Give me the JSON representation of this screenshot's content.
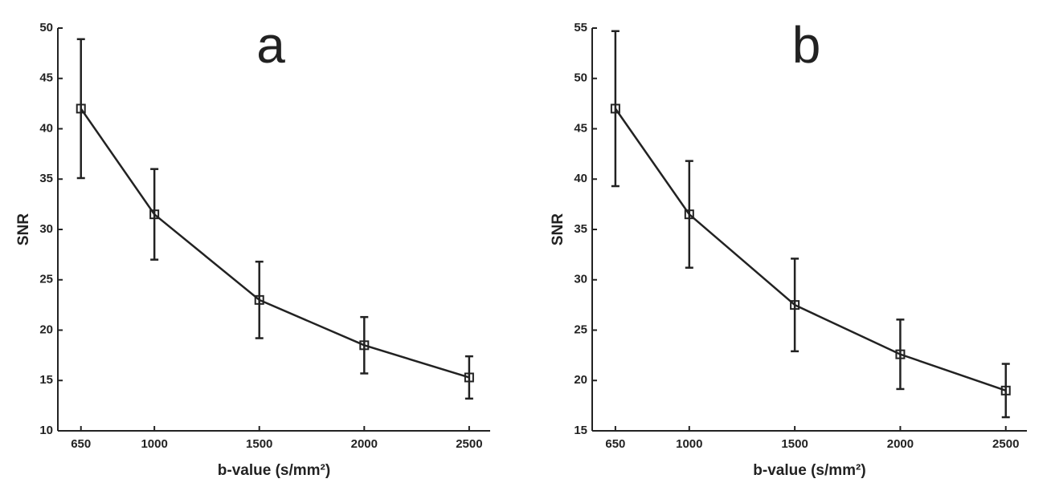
{
  "chart_data": [
    {
      "type": "line",
      "title": "a",
      "xlabel": "b-value (s/mm²)",
      "ylabel": "SNR",
      "x": [
        650,
        1000,
        1500,
        2000,
        2500
      ],
      "series": [
        {
          "color": "#222222",
          "values": [
            42.0,
            31.5,
            23.0,
            18.5,
            15.3
          ],
          "errors": [
            6.9,
            4.5,
            3.8,
            2.8,
            2.1
          ]
        }
      ],
      "xlim": [
        540,
        2600
      ],
      "xticks": [
        650,
        1000,
        1500,
        2000,
        2500
      ],
      "ylim": [
        10,
        50
      ],
      "yticks": [
        10,
        15,
        20,
        25,
        30,
        35,
        40,
        45,
        50
      ]
    },
    {
      "type": "line",
      "title": "b",
      "xlabel": "b-value (s/mm²)",
      "ylabel": "SNR",
      "x": [
        650,
        1000,
        1500,
        2000,
        2500
      ],
      "series": [
        {
          "color": "#222222",
          "values": [
            47.0,
            36.5,
            27.5,
            22.6,
            19.0
          ],
          "errors": [
            7.7,
            5.3,
            4.6,
            3.45,
            2.65
          ]
        }
      ],
      "xlim": [
        540,
        2600
      ],
      "xticks": [
        650,
        1000,
        1500,
        2000,
        2500
      ],
      "ylim": [
        15,
        55
      ],
      "yticks": [
        15,
        20,
        25,
        30,
        35,
        40,
        45,
        50,
        55
      ]
    }
  ]
}
